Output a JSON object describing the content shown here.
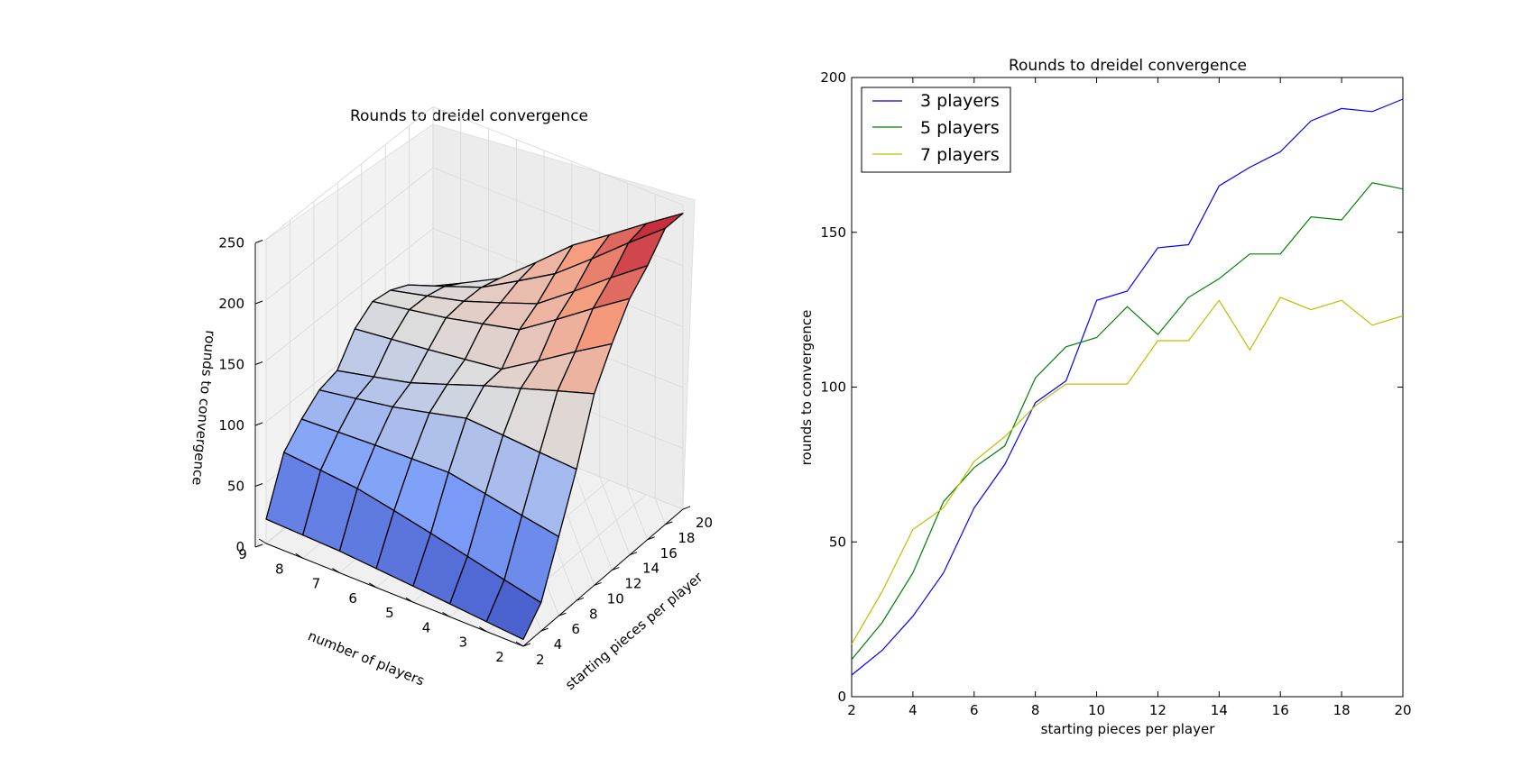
{
  "chart_data": [
    {
      "type": "surface3d",
      "title": "Rounds to dreidel convergence",
      "xlabel": "starting pieces per player",
      "ylabel": "number of players",
      "zlabel": "rounds to convergence",
      "x_ticks": [
        "2",
        "4",
        "6",
        "8",
        "10",
        "12",
        "14",
        "16",
        "18",
        "20"
      ],
      "y_ticks": [
        "2",
        "3",
        "4",
        "5",
        "6",
        "7",
        "8",
        "9"
      ],
      "z_ticks": [
        "0",
        "50",
        "100",
        "150",
        "200",
        "250"
      ],
      "zlim": [
        0,
        250
      ],
      "colormap": "coolwarm"
    },
    {
      "type": "line",
      "title": "Rounds to dreidel convergence",
      "xlabel": "starting pieces per player",
      "ylabel": "rounds to convergence",
      "xlim": [
        2,
        20
      ],
      "ylim": [
        0,
        200
      ],
      "x_ticks": [
        "2",
        "4",
        "6",
        "8",
        "10",
        "12",
        "14",
        "16",
        "18",
        "20"
      ],
      "y_ticks": [
        "0",
        "50",
        "100",
        "150",
        "200"
      ],
      "legend_position": "top-left",
      "x": [
        2,
        3,
        4,
        5,
        6,
        7,
        8,
        9,
        10,
        11,
        12,
        13,
        14,
        15,
        16,
        17,
        18,
        19,
        20
      ],
      "series": [
        {
          "name": "3 players",
          "color": "#0000ff",
          "values": [
            7,
            15,
            26,
            40,
            61,
            75,
            95,
            102,
            128,
            131,
            145,
            146,
            165,
            171,
            176,
            186,
            190,
            189,
            193
          ]
        },
        {
          "name": "5 players",
          "color": "#008000",
          "values": [
            12,
            24,
            40,
            63,
            74,
            81,
            103,
            113,
            116,
            126,
            117,
            129,
            135,
            143,
            143,
            155,
            154,
            166,
            164
          ]
        },
        {
          "name": "7 players",
          "color": "#bfbf00",
          "values": [
            17,
            34,
            54,
            61,
            76,
            84,
            94,
            101,
            101,
            101,
            115,
            115,
            128,
            112,
            129,
            125,
            128,
            120,
            123
          ]
        }
      ]
    }
  ]
}
